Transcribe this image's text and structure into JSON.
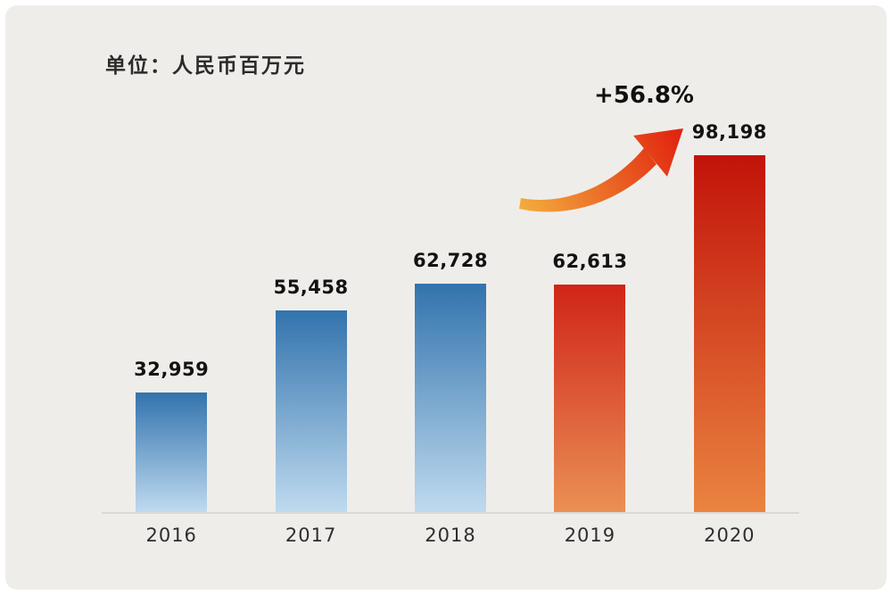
{
  "chart_data": {
    "type": "bar",
    "unit_label": "单位：人民币百万元",
    "categories": [
      "2016",
      "2017",
      "2018",
      "2019",
      "2020"
    ],
    "values": [
      32959,
      55458,
      62728,
      62613,
      98198
    ],
    "value_labels": [
      "32,959",
      "55,458",
      "62,728",
      "62,613",
      "98,198"
    ],
    "annotation": {
      "growth_label": "+56.8%",
      "from_year": "2019",
      "to_year": "2020"
    },
    "ylim": [
      0,
      100000
    ],
    "grid": false,
    "legend": false,
    "xlabel": "",
    "ylabel": ""
  },
  "colors": {
    "bg": "#efedea",
    "blue_top": "#3273ad",
    "blue_bottom": "#bfdaef",
    "red19_top": "#d02418",
    "red19_bottom": "#ea9055",
    "red20_top": "#c2130a",
    "red20_bottom": "#ea8440",
    "arrow_from": "#f3ae3d",
    "arrow_to": "#e1220e",
    "text": "#131313"
  }
}
